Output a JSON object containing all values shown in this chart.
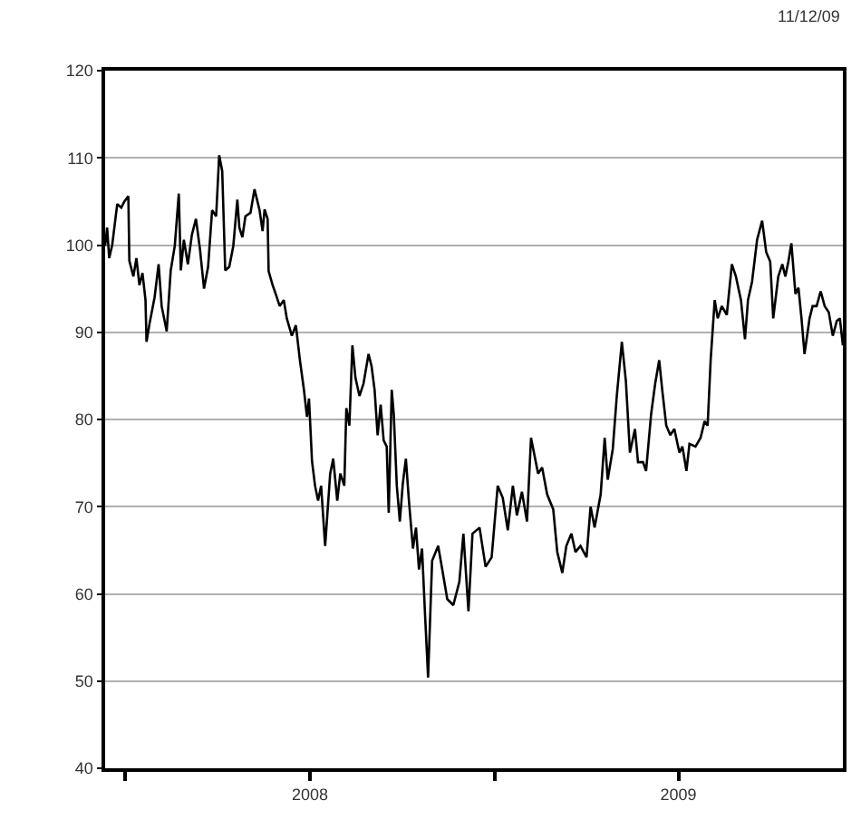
{
  "chart_data": {
    "type": "line",
    "annotations": [
      "11/12/09"
    ],
    "x": [
      "2007-12-12",
      "2007-12-14",
      "2007-12-16",
      "2007-12-19",
      "2007-12-24",
      "2007-12-28",
      "2007-12-31",
      "2008-01-04",
      "2008-01-05",
      "2008-01-09",
      "2008-01-12",
      "2008-01-15",
      "2008-01-18",
      "2008-01-21",
      "2008-01-22",
      "2008-01-25",
      "2008-01-30",
      "2008-02-03",
      "2008-02-06",
      "2008-02-11",
      "2008-02-15",
      "2008-02-19",
      "2008-02-23",
      "2008-02-25",
      "2008-02-28",
      "2008-03-03",
      "2008-03-07",
      "2008-03-11",
      "2008-03-15",
      "2008-03-19",
      "2008-03-23",
      "2008-03-27",
      "2008-03-31",
      "2008-04-03",
      "2008-04-06",
      "2008-04-09",
      "2008-04-13",
      "2008-04-17",
      "2008-04-21",
      "2008-04-23",
      "2008-04-26",
      "2008-04-29",
      "2008-05-04",
      "2008-05-08",
      "2008-05-13",
      "2008-05-16",
      "2008-05-18",
      "2008-05-21",
      "2008-05-22",
      "2008-05-26",
      "2008-05-29",
      "2008-06-02",
      "2008-06-06",
      "2008-06-09",
      "2008-06-14",
      "2008-06-18",
      "2008-06-22",
      "2008-06-26",
      "2008-06-29",
      "2008-07-01",
      "2008-07-04",
      "2008-07-07",
      "2008-07-10",
      "2008-07-13",
      "2008-07-17",
      "2008-07-22",
      "2008-07-25",
      "2008-07-29",
      "2008-08-01",
      "2008-08-05",
      "2008-08-07",
      "2008-08-10",
      "2008-08-13",
      "2008-08-16",
      "2008-08-20",
      "2008-08-24",
      "2008-08-29",
      "2008-09-01",
      "2008-09-04",
      "2008-09-07",
      "2008-09-10",
      "2008-09-13",
      "2008-09-16",
      "2008-09-18",
      "2008-09-21",
      "2008-09-23",
      "2008-09-26",
      "2008-09-29",
      "2008-10-02",
      "2008-10-05",
      "2008-10-08",
      "2008-10-12",
      "2008-10-15",
      "2008-10-18",
      "2008-10-21",
      "2008-10-24",
      "2008-10-27",
      "2008-10-31",
      "2008-11-06",
      "2008-11-09",
      "2008-11-15",
      "2008-11-21",
      "2008-11-27",
      "2008-12-01",
      "2008-12-06",
      "2008-12-10",
      "2008-12-17",
      "2008-12-23",
      "2008-12-29",
      "2009-01-04",
      "2009-01-09",
      "2009-01-14",
      "2009-01-19",
      "2009-01-23",
      "2009-01-28",
      "2009-02-02",
      "2009-02-06",
      "2009-02-13",
      "2009-02-17",
      "2009-02-22",
      "2009-02-28",
      "2009-03-04",
      "2009-03-09",
      "2009-03-13",
      "2009-03-18",
      "2009-03-22",
      "2009-03-27",
      "2009-04-02",
      "2009-04-06",
      "2009-04-10",
      "2009-04-16",
      "2009-04-20",
      "2009-04-23",
      "2009-04-28",
      "2009-05-02",
      "2009-05-07",
      "2009-05-11",
      "2009-05-15",
      "2009-05-20",
      "2009-05-23",
      "2009-05-28",
      "2009-05-31",
      "2009-06-05",
      "2009-06-09",
      "2009-06-13",
      "2009-06-16",
      "2009-06-20",
      "2009-06-24",
      "2009-06-28",
      "2009-07-03",
      "2009-07-06",
      "2009-07-10",
      "2009-07-13",
      "2009-07-19",
      "2009-07-24",
      "2009-07-28",
      "2009-07-31",
      "2009-08-03",
      "2009-08-07",
      "2009-08-10",
      "2009-08-14",
      "2009-08-19",
      "2009-08-24",
      "2009-08-28",
      "2009-09-02",
      "2009-09-06",
      "2009-09-09",
      "2009-09-13",
      "2009-09-18",
      "2009-09-23",
      "2009-09-27",
      "2009-10-01",
      "2009-10-04",
      "2009-10-09",
      "2009-10-13",
      "2009-10-16",
      "2009-10-19",
      "2009-10-22",
      "2009-10-26",
      "2009-10-29",
      "2009-11-01",
      "2009-11-04",
      "2009-11-09",
      "2009-11-12",
      "2009-11-16",
      "2009-11-20",
      "2009-11-24",
      "2009-11-28",
      "2009-12-02",
      "2009-12-06",
      "2009-12-09",
      "2009-12-12"
    ],
    "series": [
      {
        "color": "#000000",
        "values": [
          99.9,
          102,
          98.5,
          100,
          104.7,
          104.3,
          105,
          105.6,
          98.2,
          96.4,
          98.5,
          95.4,
          96.8,
          93.7,
          88.9,
          91,
          94,
          97.8,
          93,
          90.1,
          97.1,
          99.9,
          105.9,
          97.1,
          100.6,
          97.8,
          101.2,
          103,
          99.5,
          95,
          97.5,
          104,
          103.3,
          110.3,
          108.5,
          97.1,
          97.5,
          99.9,
          105.2,
          102,
          100.9,
          103.3,
          103.7,
          106.4,
          104,
          101.6,
          104.1,
          103,
          97,
          95.4,
          94.4,
          93,
          93.7,
          91.6,
          89.6,
          90.8,
          86.8,
          83.4,
          80.3,
          82.4,
          75.2,
          72.4,
          70.7,
          72.4,
          65.5,
          73.8,
          75.5,
          70.7,
          73.8,
          72.4,
          81.3,
          79.3,
          88.5,
          84.8,
          82.7,
          84.1,
          87.5,
          86.1,
          83.4,
          78.2,
          81.7,
          77.6,
          76.9,
          69.3,
          83.4,
          80.6,
          72.4,
          68.3,
          72.7,
          75.5,
          70.7,
          65.2,
          67.6,
          62.8,
          65.2,
          57.6,
          50.4,
          63.8,
          65.5,
          63.5,
          59.4,
          58.7,
          61.4,
          66.9,
          58,
          66.9,
          67.6,
          63.1,
          64.2,
          72.4,
          71,
          67.3,
          72.4,
          69,
          71.7,
          68.3,
          77.9,
          73.8,
          74.5,
          71.4,
          69.7,
          64.8,
          62.4,
          65.5,
          66.9,
          64.8,
          65.5,
          64.2,
          70,
          67.6,
          71.4,
          77.9,
          73.1,
          76.6,
          82.7,
          88.9,
          84.4,
          76.2,
          78.9,
          75.1,
          75.1,
          74.1,
          80.6,
          84.1,
          86.8,
          83.4,
          79.3,
          78.2,
          78.9,
          76.2,
          76.9,
          74.1,
          77.2,
          76.9,
          77.9,
          79.8,
          79.3,
          86.8,
          93.7,
          91.6,
          93,
          92,
          97.8,
          96.4,
          93.7,
          89.2,
          93.7,
          95.8,
          100.6,
          102.8,
          99.2,
          98.1,
          91.6,
          96.4,
          97.8,
          96.4,
          98.1,
          100.2,
          94.4,
          95.1,
          91.6,
          87.5,
          91.6,
          93,
          93,
          94.7,
          93,
          92.3,
          89.6,
          91.3,
          91.6,
          88.5
        ]
      }
    ],
    "xlim": [
      "2007-12-12",
      "2009-12-12"
    ],
    "xticks": [
      {
        "value": "2008-01-01",
        "label": null
      },
      {
        "value": "2008-07-02",
        "label": "2008"
      },
      {
        "value": "2009-01-01",
        "label": null
      },
      {
        "value": "2009-07-02",
        "label": "2009"
      }
    ],
    "ylim": [
      40,
      120
    ],
    "yticks": [
      40,
      50,
      60,
      70,
      80,
      90,
      100,
      110,
      120
    ],
    "grid": "y",
    "marker": "none",
    "line_style": "solid"
  }
}
